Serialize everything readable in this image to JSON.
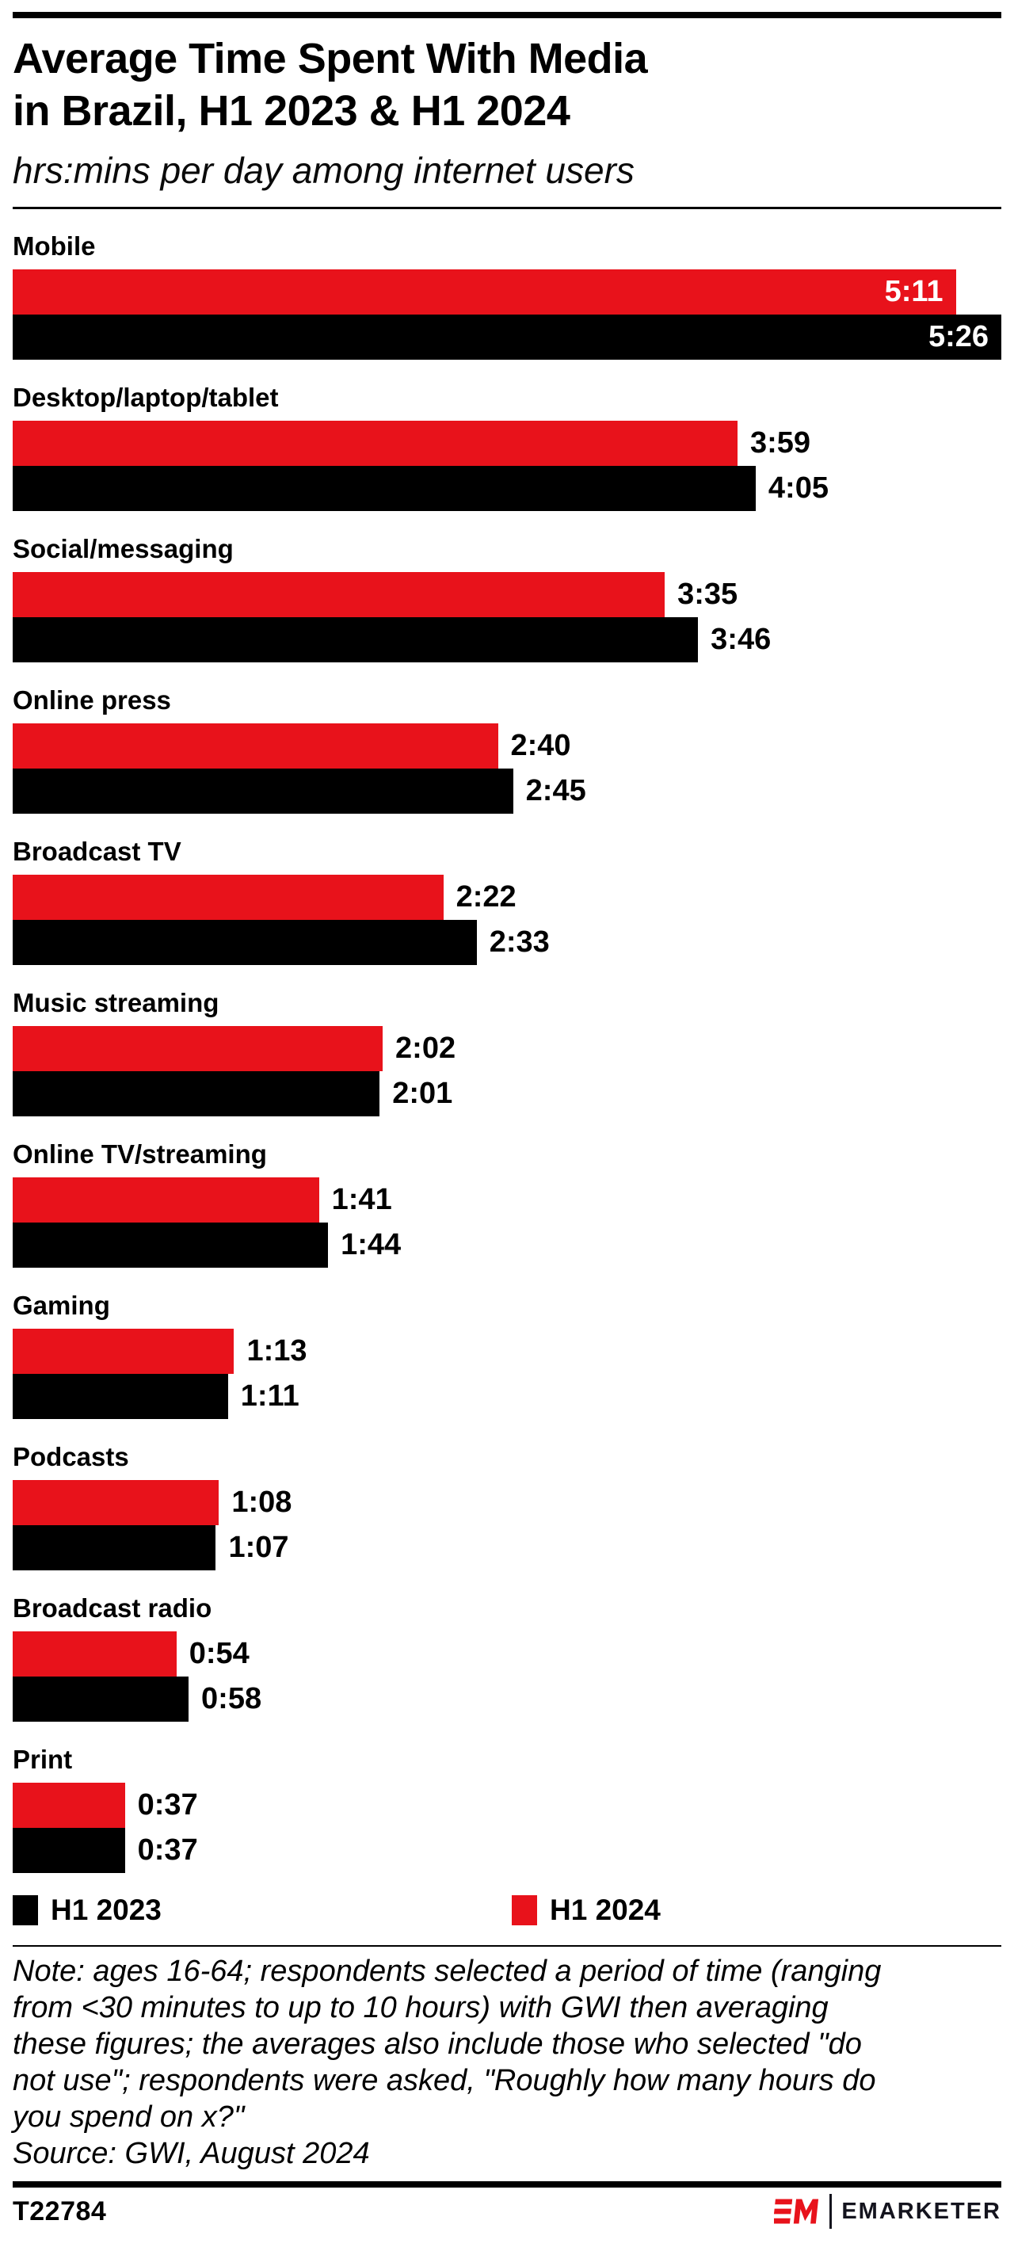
{
  "header": {
    "title_line1": "Average Time Spent With Media",
    "title_line2": "in Brazil, H1 2023 & H1 2024",
    "subtitle": "hrs:mins per day among internet users"
  },
  "colors": {
    "red": "#e8121b",
    "black": "#000000",
    "white_value_text": "#ffffff"
  },
  "chart_data": {
    "type": "bar",
    "orientation": "horizontal",
    "title": "Average Time Spent With Media in Brazil, H1 2023 & H1 2024",
    "subtitle": "hrs:mins per day among internet users",
    "unit": "hrs:mins per day",
    "max_minutes": 326,
    "categories": [
      "Mobile",
      "Desktop/laptop/tablet",
      "Social/messaging",
      "Online press",
      "Broadcast TV",
      "Music streaming",
      "Online TV/streaming",
      "Gaming",
      "Podcasts",
      "Broadcast radio",
      "Print"
    ],
    "series": [
      {
        "name": "H1 2024",
        "color_key": "red",
        "labels": [
          "5:11",
          "3:59",
          "3:35",
          "2:40",
          "2:22",
          "2:02",
          "1:41",
          "1:13",
          "1:08",
          "0:54",
          "0:37"
        ],
        "minutes": [
          311,
          239,
          215,
          160,
          142,
          122,
          101,
          73,
          68,
          54,
          37
        ]
      },
      {
        "name": "H1 2023",
        "color_key": "black",
        "labels": [
          "5:26",
          "4:05",
          "3:46",
          "2:45",
          "2:33",
          "2:01",
          "1:44",
          "1:11",
          "1:07",
          "0:58",
          "0:37"
        ],
        "minutes": [
          326,
          245,
          226,
          165,
          153,
          121,
          104,
          71,
          67,
          58,
          37
        ]
      }
    ],
    "legend_position": "bottom",
    "grid": false
  },
  "legend": [
    {
      "label": "H1 2023",
      "color_key": "black"
    },
    {
      "label": "H1 2024",
      "color_key": "red"
    }
  ],
  "note": "Note: ages 16-64; respondents selected a period of time (ranging\nfrom <30 minutes to up to 10 hours) with GWI then averaging\nthese figures; the averages also include those who selected \"do\nnot use\"; respondents were asked, \"Roughly how many hours do\nyou spend on x?\"",
  "source": "Source: GWI, August 2024",
  "footer": {
    "chart_id": "T22784",
    "logo": "EM",
    "brand": "EMARKETER"
  }
}
